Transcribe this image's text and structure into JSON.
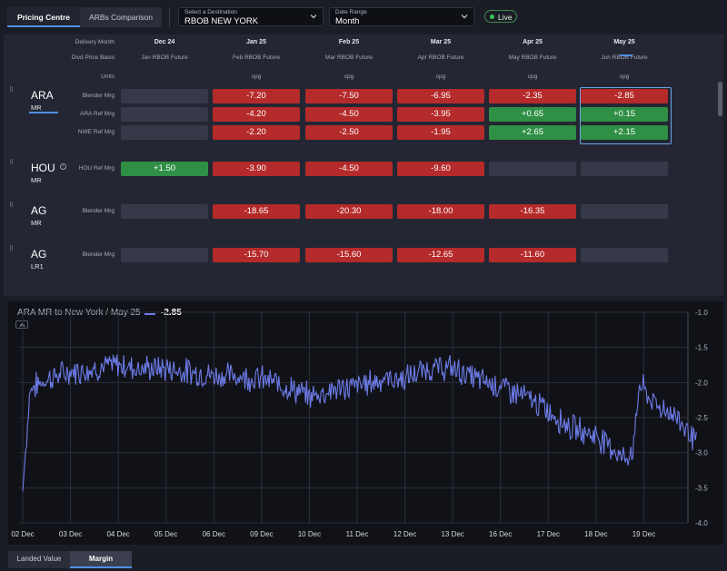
{
  "tabs": [
    {
      "label": "Pricing Centre",
      "active": true
    },
    {
      "label": "ARBs Comparison",
      "active": false
    }
  ],
  "destination": {
    "label": "Select a Destination",
    "value": "RBOB NEW YORK"
  },
  "date_range": {
    "label": "Date Range",
    "value": "Month"
  },
  "live_label": "Live",
  "grid": {
    "row_headers": {
      "delivery_month": "Delivery Month",
      "divd_price_basis": "Divd Price Basis",
      "units": "Units"
    },
    "columns": [
      {
        "month": "Dec 24",
        "basis": "Jan RBOB Future",
        "units": ""
      },
      {
        "month": "Jan 25",
        "basis": "Feb RBOB Future",
        "units": "cpg"
      },
      {
        "month": "Feb 25",
        "basis": "Mar RBOB Future",
        "units": "cpg"
      },
      {
        "month": "Mar 25",
        "basis": "Apr RBOB Future",
        "units": "cpg"
      },
      {
        "month": "Apr 25",
        "basis": "May RBOB Future",
        "units": "cpg"
      },
      {
        "month": "May 25",
        "basis": "Jun RBOB Future",
        "units": "cpg"
      }
    ],
    "groups": [
      {
        "name": "ARA",
        "sub": "MR",
        "info": false,
        "rows": [
          {
            "label": "Blender Mrg",
            "values": [
              "",
              "-7.20",
              "-7.50",
              "-6.95",
              "-2.35",
              "-2.85"
            ]
          },
          {
            "label": "ARA Ref Mrg",
            "values": [
              "",
              "-4.20",
              "-4.50",
              "-3.95",
              "+0.65",
              "+0.15"
            ]
          },
          {
            "label": "NWE Ref Mrg",
            "values": [
              "",
              "-2.20",
              "-2.50",
              "-1.95",
              "+2.65",
              "+2.15"
            ]
          }
        ]
      },
      {
        "name": "HOU",
        "sub": "MR",
        "info": true,
        "rows": [
          {
            "label": "HOU Ref Mrg",
            "values": [
              "+1.50",
              "-3.90",
              "-4.50",
              "-9.60",
              "",
              ""
            ]
          }
        ]
      },
      {
        "name": "AG",
        "sub": "MR",
        "info": false,
        "rows": [
          {
            "label": "Blender Mrg",
            "values": [
              "",
              "-18.65",
              "-20.30",
              "-18.00",
              "-16.35",
              ""
            ]
          }
        ]
      },
      {
        "name": "AG",
        "sub": "LR1",
        "info": false,
        "rows": [
          {
            "label": "Blender Mrg",
            "values": [
              "",
              "-15.70",
              "-15.60",
              "-12.65",
              "-11.60",
              ""
            ]
          }
        ]
      }
    ]
  },
  "chart": {
    "title": "ARA MR to New York / May 25",
    "current_value": "-2.85",
    "line_color": "#6c7be8"
  },
  "chart_data": {
    "type": "line",
    "x_tick_labels": [
      "02 Dec",
      "03 Dec",
      "04 Dec",
      "05 Dec",
      "06 Dec",
      "09 Dec",
      "10 Dec",
      "11 Dec",
      "12 Dec",
      "13 Dec",
      "16 Dec",
      "17 Dec",
      "18 Dec",
      "19 Dec"
    ],
    "y_ticks": [
      -1.0,
      -1.5,
      -2.0,
      -2.5,
      -3.0,
      -3.5,
      -4.0
    ],
    "ylim": [
      -4.0,
      -1.0
    ],
    "grid": true,
    "series": [
      {
        "name": "ARA MR to New York / May 25",
        "anchors": [
          [
            0,
            -3.55
          ],
          [
            0.15,
            -2.1
          ],
          [
            0.5,
            -1.95
          ],
          [
            1.0,
            -1.85
          ],
          [
            1.5,
            -1.8
          ],
          [
            2.0,
            -1.75
          ],
          [
            2.5,
            -1.8
          ],
          [
            3.0,
            -1.8
          ],
          [
            3.5,
            -1.85
          ],
          [
            4.0,
            -1.9
          ],
          [
            4.5,
            -1.9
          ],
          [
            5.0,
            -1.95
          ],
          [
            5.5,
            -2.05
          ],
          [
            6.0,
            -2.2
          ],
          [
            6.5,
            -2.1
          ],
          [
            7.0,
            -2.05
          ],
          [
            7.5,
            -1.95
          ],
          [
            8.0,
            -1.95
          ],
          [
            8.5,
            -1.8
          ],
          [
            9.0,
            -1.8
          ],
          [
            9.5,
            -1.95
          ],
          [
            10.0,
            -2.05
          ],
          [
            10.5,
            -2.2
          ],
          [
            11.0,
            -2.4
          ],
          [
            11.5,
            -2.65
          ],
          [
            12.0,
            -2.75
          ],
          [
            12.3,
            -2.9
          ],
          [
            12.6,
            -3.1
          ],
          [
            12.8,
            -2.9
          ],
          [
            12.9,
            -2.0
          ],
          [
            13.2,
            -2.3
          ],
          [
            13.5,
            -2.4
          ],
          [
            13.7,
            -2.5
          ],
          [
            13.95,
            -2.7
          ],
          [
            14.1,
            -2.85
          ]
        ]
      }
    ]
  },
  "bottom_tabs": [
    {
      "label": "Landed Value",
      "active": false
    },
    {
      "label": "Margin",
      "active": true
    }
  ]
}
